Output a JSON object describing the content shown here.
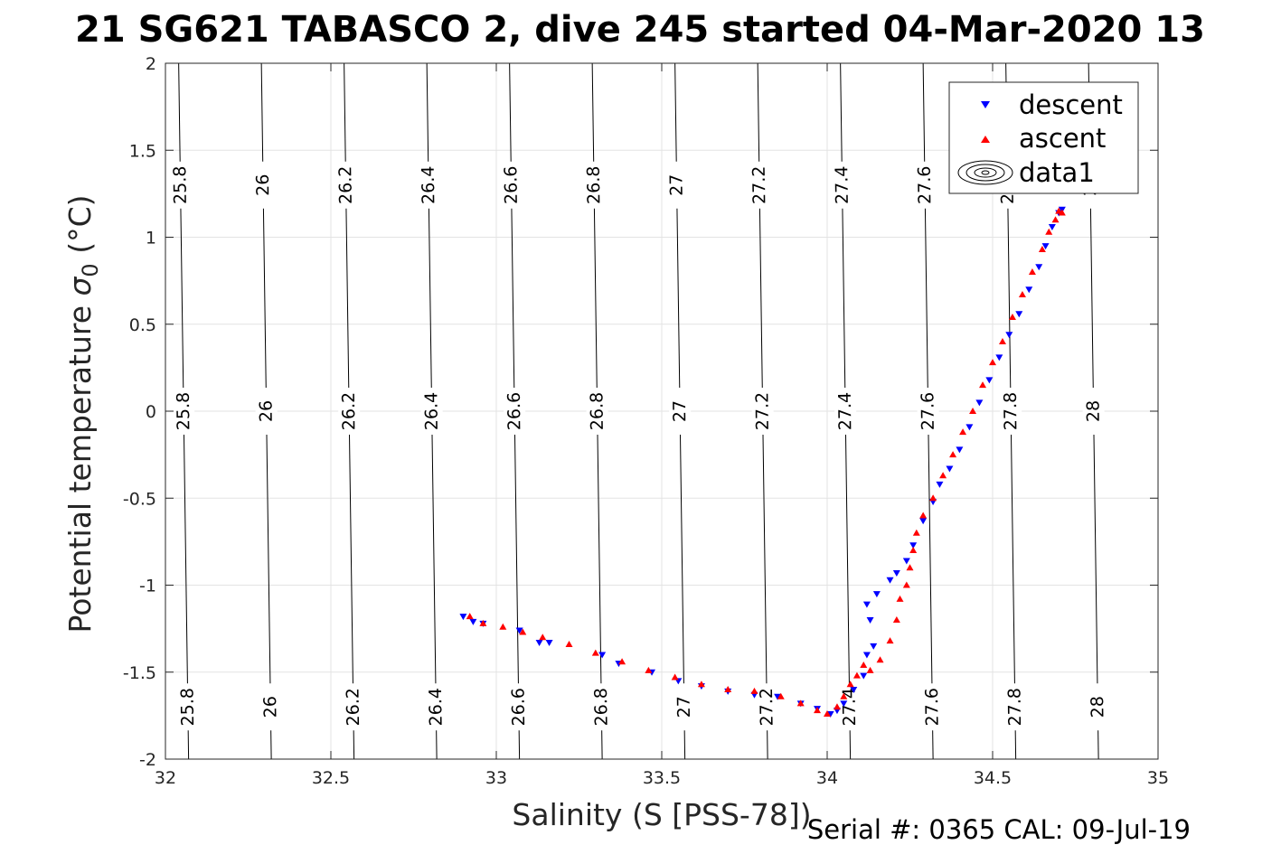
{
  "chart_data": {
    "type": "scatter",
    "title": "21 SG621 TABASCO 2, dive 245 started 04-Mar-2020 13",
    "xlabel": "Salinity (S [PSS-78])",
    "ylabel_main": "Potential temperature ",
    "ylabel_sigma": "σ",
    "ylabel_sub": "0",
    "ylabel_unit": " (°C)",
    "footer": "Serial #: 0365  CAL: 09-Jul-19",
    "xlim": [
      32,
      35
    ],
    "ylim": [
      -2,
      2
    ],
    "xticks": [
      "32",
      "32.5",
      "33",
      "33.5",
      "34",
      "34.5",
      "35"
    ],
    "yticks": [
      "-2",
      "-1.5",
      "-1",
      "-0.5",
      "0",
      "0.5",
      "1",
      "1.5",
      "2"
    ],
    "grid": true,
    "legend_position": "top-right",
    "legend": [
      "descent",
      "ascent",
      "data1"
    ],
    "density_contours": {
      "levels": [
        "25.8",
        "26",
        "26.2",
        "26.4",
        "26.6",
        "26.8",
        "27",
        "27.2",
        "27.4",
        "27.6",
        "27.8",
        "28"
      ],
      "salinity_at_T2": [
        32.04,
        32.29,
        32.54,
        32.79,
        33.04,
        33.29,
        33.54,
        33.79,
        34.04,
        34.29,
        34.54,
        34.79
      ],
      "salinity_at_Tm2": [
        32.07,
        32.32,
        32.57,
        32.82,
        33.07,
        33.32,
        33.57,
        33.82,
        34.07,
        34.32,
        34.57,
        34.82
      ]
    },
    "series": [
      {
        "name": "descent",
        "color": "#0000ff",
        "marker": "triangle-down",
        "points": [
          [
            32.9,
            -1.18
          ],
          [
            32.93,
            -1.21
          ],
          [
            32.96,
            -1.22
          ],
          [
            33.07,
            -1.26
          ],
          [
            33.13,
            -1.33
          ],
          [
            33.16,
            -1.33
          ],
          [
            33.32,
            -1.4
          ],
          [
            33.37,
            -1.45
          ],
          [
            33.47,
            -1.5
          ],
          [
            33.55,
            -1.55
          ],
          [
            33.62,
            -1.58
          ],
          [
            33.7,
            -1.61
          ],
          [
            33.78,
            -1.63
          ],
          [
            33.85,
            -1.64
          ],
          [
            33.92,
            -1.68
          ],
          [
            33.97,
            -1.71
          ],
          [
            34.01,
            -1.74
          ],
          [
            34.03,
            -1.72
          ],
          [
            34.05,
            -1.68
          ],
          [
            34.08,
            -1.6
          ],
          [
            34.11,
            -1.52
          ],
          [
            34.12,
            -1.4
          ],
          [
            34.14,
            -1.35
          ],
          [
            34.13,
            -1.2
          ],
          [
            34.12,
            -1.11
          ],
          [
            34.15,
            -1.05
          ],
          [
            34.19,
            -0.97
          ],
          [
            34.21,
            -0.93
          ],
          [
            34.24,
            -0.86
          ],
          [
            34.26,
            -0.77
          ],
          [
            34.29,
            -0.63
          ],
          [
            34.32,
            -0.52
          ],
          [
            34.34,
            -0.42
          ],
          [
            34.37,
            -0.33
          ],
          [
            34.4,
            -0.22
          ],
          [
            34.43,
            -0.09
          ],
          [
            34.46,
            0.05
          ],
          [
            34.49,
            0.18
          ],
          [
            34.52,
            0.31
          ],
          [
            34.55,
            0.44
          ],
          [
            34.58,
            0.56
          ],
          [
            34.61,
            0.7
          ],
          [
            34.64,
            0.83
          ],
          [
            34.66,
            0.95
          ],
          [
            34.68,
            1.06
          ],
          [
            34.7,
            1.14
          ],
          [
            34.71,
            1.16
          ]
        ]
      },
      {
        "name": "ascent",
        "color": "#ff0000",
        "marker": "triangle-up",
        "points": [
          [
            32.92,
            -1.18
          ],
          [
            32.96,
            -1.22
          ],
          [
            33.02,
            -1.24
          ],
          [
            33.08,
            -1.27
          ],
          [
            33.14,
            -1.3
          ],
          [
            33.22,
            -1.34
          ],
          [
            33.3,
            -1.39
          ],
          [
            33.38,
            -1.44
          ],
          [
            33.46,
            -1.49
          ],
          [
            33.54,
            -1.53
          ],
          [
            33.62,
            -1.57
          ],
          [
            33.7,
            -1.6
          ],
          [
            33.78,
            -1.61
          ],
          [
            33.86,
            -1.64
          ],
          [
            33.92,
            -1.68
          ],
          [
            33.97,
            -1.72
          ],
          [
            34.0,
            -1.74
          ],
          [
            34.03,
            -1.7
          ],
          [
            34.05,
            -1.64
          ],
          [
            34.07,
            -1.57
          ],
          [
            34.09,
            -1.52
          ],
          [
            34.11,
            -1.46
          ],
          [
            34.13,
            -1.49
          ],
          [
            34.16,
            -1.43
          ],
          [
            34.19,
            -1.32
          ],
          [
            34.21,
            -1.2
          ],
          [
            34.22,
            -1.08
          ],
          [
            34.24,
            -1.0
          ],
          [
            34.25,
            -0.9
          ],
          [
            34.26,
            -0.8
          ],
          [
            34.27,
            -0.7
          ],
          [
            34.29,
            -0.6
          ],
          [
            34.32,
            -0.5
          ],
          [
            34.35,
            -0.37
          ],
          [
            34.38,
            -0.25
          ],
          [
            34.41,
            -0.12
          ],
          [
            34.44,
            0.0
          ],
          [
            34.47,
            0.15
          ],
          [
            34.5,
            0.28
          ],
          [
            34.53,
            0.4
          ],
          [
            34.56,
            0.54
          ],
          [
            34.59,
            0.67
          ],
          [
            34.62,
            0.8
          ],
          [
            34.65,
            0.93
          ],
          [
            34.67,
            1.03
          ],
          [
            34.69,
            1.1
          ],
          [
            34.7,
            1.15
          ],
          [
            34.71,
            1.14
          ]
        ]
      }
    ]
  }
}
